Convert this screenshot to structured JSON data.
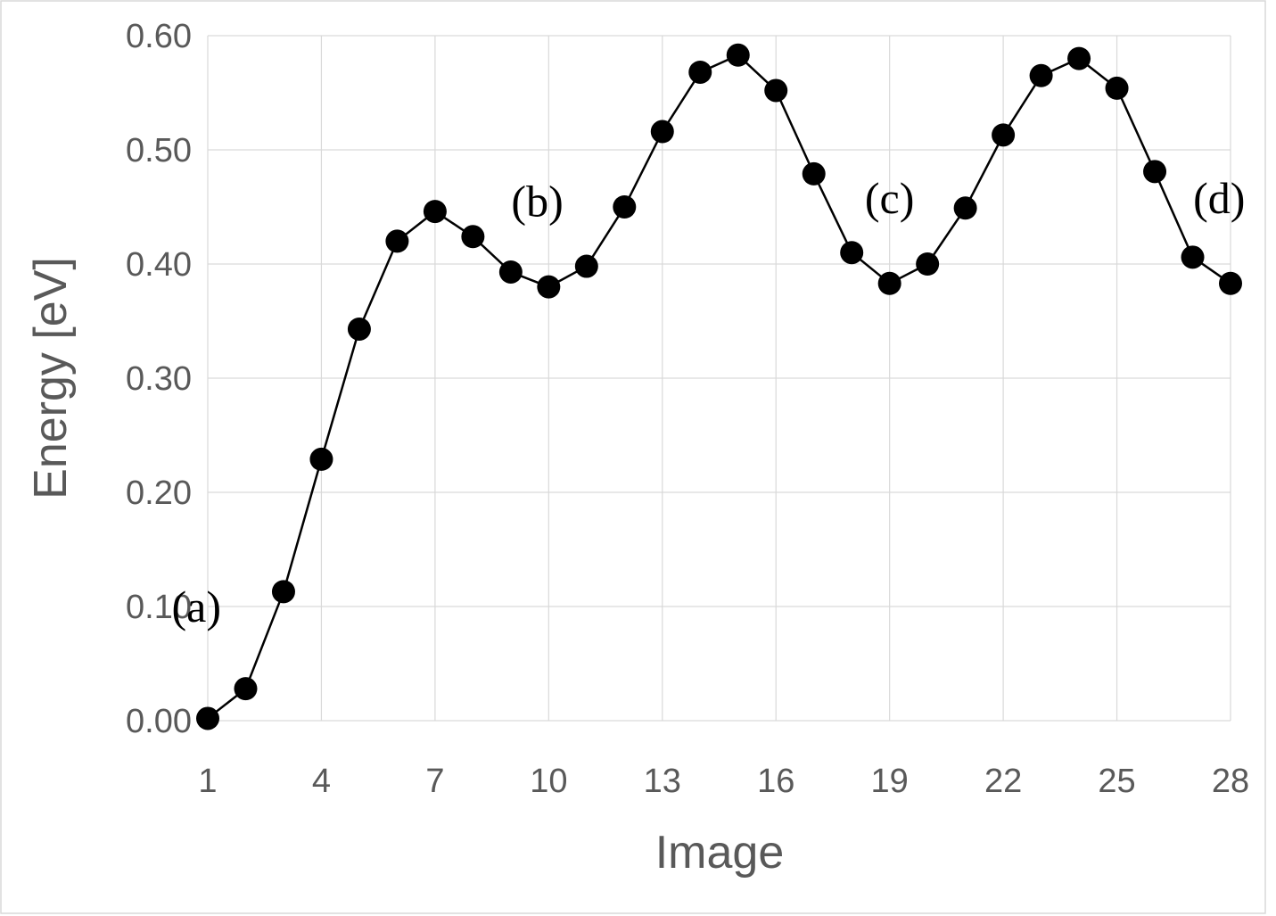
{
  "chart_data": {
    "type": "line",
    "title": "",
    "xlabel": "Image",
    "ylabel": "Energy [eV]",
    "x": [
      1,
      2,
      3,
      4,
      5,
      6,
      7,
      8,
      9,
      10,
      11,
      12,
      13,
      14,
      15,
      16,
      17,
      18,
      19,
      20,
      21,
      22,
      23,
      24,
      25,
      26,
      27,
      28
    ],
    "series": [
      {
        "values": [
          0.002,
          0.028,
          0.113,
          0.229,
          0.343,
          0.42,
          0.446,
          0.424,
          0.393,
          0.38,
          0.398,
          0.45,
          0.516,
          0.568,
          0.583,
          0.552,
          0.479,
          0.41,
          0.383,
          0.4,
          0.449,
          0.513,
          0.565,
          0.58,
          0.554,
          0.481,
          0.406,
          0.383
        ],
        "color": "#000000"
      }
    ],
    "xlim": [
      1,
      28
    ],
    "ylim": [
      0,
      0.6
    ],
    "xticks": [
      1,
      4,
      7,
      10,
      13,
      16,
      19,
      22,
      25,
      28
    ],
    "xtick_labels": [
      "1",
      "4",
      "7",
      "10",
      "13",
      "16",
      "19",
      "22",
      "25",
      "28"
    ],
    "yticks": [
      0,
      0.1,
      0.2,
      0.3,
      0.4,
      0.5,
      0.6
    ],
    "ytick_labels": [
      "0.00",
      "0.10",
      "0.20",
      "0.30",
      "0.40",
      "0.50",
      "0.60"
    ],
    "grid": true,
    "legend": "none",
    "annotations": [
      {
        "text": "(a)",
        "x": 0.7,
        "y": 0.1
      },
      {
        "text": "(b)",
        "x": 9.7,
        "y": 0.455
      },
      {
        "text": "(c)",
        "x": 19.0,
        "y": 0.458
      },
      {
        "text": "(d)",
        "x": 27.7,
        "y": 0.458
      }
    ]
  }
}
